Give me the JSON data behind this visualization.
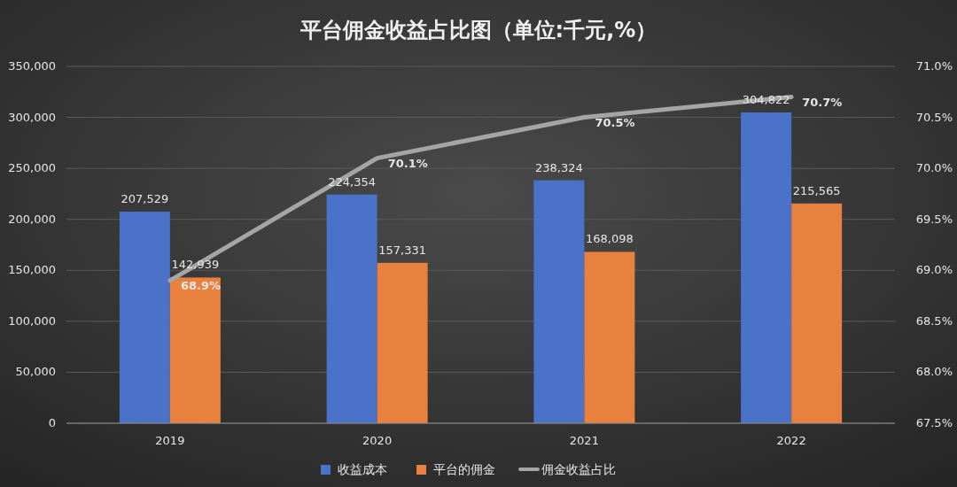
{
  "chart_data": {
    "type": "bar",
    "title": "平台佣金收益占比图（单位:千元,%）",
    "categories": [
      "2019",
      "2020",
      "2021",
      "2022"
    ],
    "series": [
      {
        "name": "收益成本",
        "color": "#4a72c8",
        "values": [
          207529,
          224354,
          238324,
          304822
        ],
        "value_labels": [
          "207,529",
          "224,354",
          "238,324",
          "304,822"
        ]
      },
      {
        "name": "平台的佣金",
        "color": "#e8803e",
        "values": [
          142939,
          157331,
          168098,
          215565
        ],
        "value_labels": [
          "142,939",
          "157,331",
          "168,098",
          "215,565"
        ]
      },
      {
        "name": "佣金收益占比",
        "type": "line",
        "axis": "y2",
        "color": "#a5a5a5",
        "values": [
          68.9,
          70.1,
          70.5,
          70.7
        ],
        "value_labels": [
          "68.9%",
          "70.1%",
          "70.5%",
          "70.7%"
        ]
      }
    ],
    "ylim": [
      0,
      350000
    ],
    "yticks": [
      {
        "value": 0,
        "label": "0"
      },
      {
        "value": 50000,
        "label": "50,000"
      },
      {
        "value": 100000,
        "label": "100,000"
      },
      {
        "value": 150000,
        "label": "150,000"
      },
      {
        "value": 200000,
        "label": "200,000"
      },
      {
        "value": 250000,
        "label": "250,000"
      },
      {
        "value": 300000,
        "label": "300,000"
      },
      {
        "value": 350000,
        "label": "350,000"
      }
    ],
    "y2lim": [
      67.5,
      71.0
    ],
    "y2ticks": [
      {
        "value": 67.5,
        "label": "67.5%"
      },
      {
        "value": 68.0,
        "label": "68.0%"
      },
      {
        "value": 68.5,
        "label": "68.5%"
      },
      {
        "value": 69.0,
        "label": "69.0%"
      },
      {
        "value": 69.5,
        "label": "69.5%"
      },
      {
        "value": 70.0,
        "label": "70.0%"
      },
      {
        "value": 70.5,
        "label": "70.5%"
      },
      {
        "value": 71.0,
        "label": "71.0%"
      }
    ],
    "grid": "y",
    "legend": "bottom",
    "marker": "none"
  }
}
